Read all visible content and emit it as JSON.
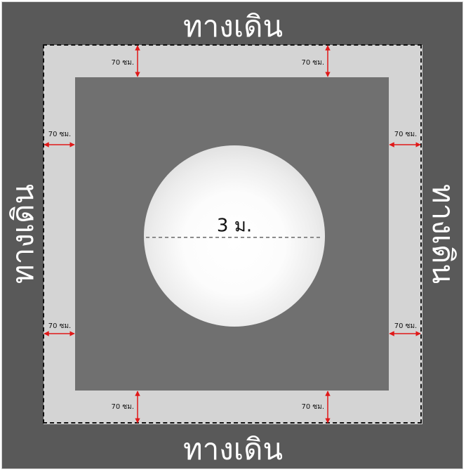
{
  "walkway_label": "ทางเดิน",
  "sphere": {
    "diameter_label": "3 ม."
  },
  "clearance_label": "70 ซม.",
  "colors": {
    "outer_ground": "#595959",
    "walkway": "#d4d4d4",
    "inner_area": "#707070",
    "dimension_arrows": "#e01818",
    "dashed_outline": "#111111"
  }
}
